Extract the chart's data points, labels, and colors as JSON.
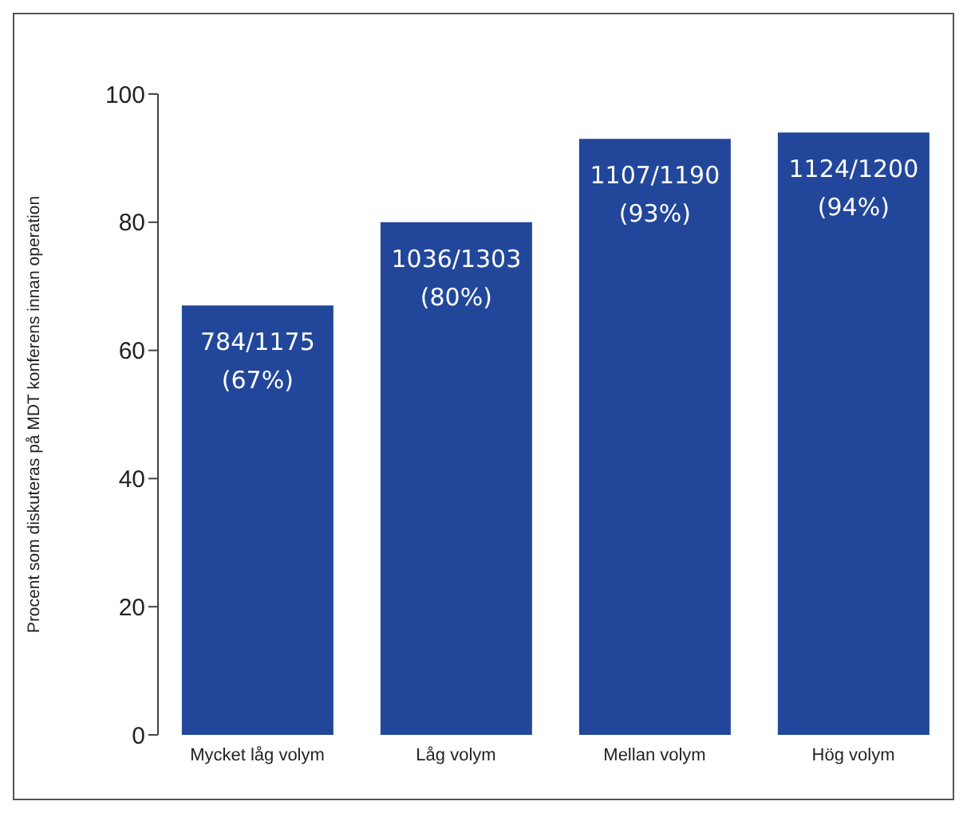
{
  "chart_data": {
    "type": "bar",
    "ylabel": "Procent som diskuteras på MDT konferens innan operation",
    "categories": [
      "Mycket låg volym",
      "Låg volym",
      "Mellan volym",
      "Hög volym"
    ],
    "values": [
      67,
      80,
      93,
      94
    ],
    "value_labels": [
      "784/1175\n(67%)",
      "1036/1303\n(80%)",
      "1107/1190\n(93%)",
      "1124/1200\n(94%)"
    ],
    "color": "#22479a",
    "ylim": [
      0,
      100
    ],
    "yticks": [
      0,
      20,
      40,
      60,
      80,
      100
    ],
    "grid": false,
    "legend": false
  }
}
